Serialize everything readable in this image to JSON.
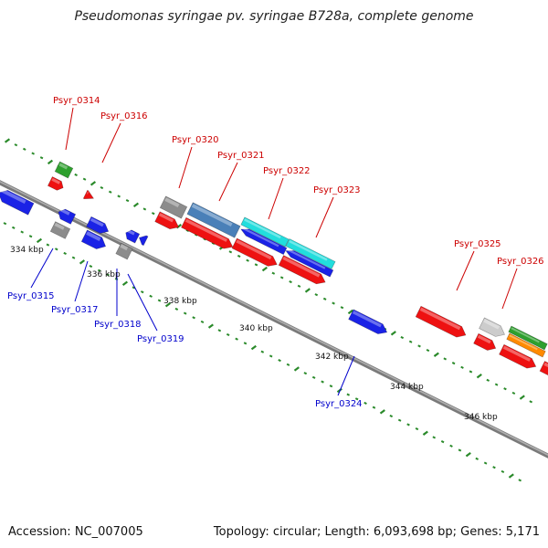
{
  "title": "Pseudomonas syringae pv. syringae B728a, complete genome",
  "footer": {
    "accession": "Accession: NC_007005",
    "topology": "Topology: circular; Length: 6,093,698 bp; Genes: 5,171"
  },
  "colors": {
    "forward_label": "#cc0000",
    "reverse_label": "#0000cc",
    "backbone": "#8a8a8a",
    "tick": "#2a8a2a",
    "red": "#ee1111",
    "blue": "#1a22e6",
    "gray": "#8c8c8c",
    "light_gray": "#cccccc",
    "green": "#2ea02e",
    "steel_blue": "#4a80b8",
    "cyan": "#22dddd",
    "orange": "#ff8a00"
  },
  "scale_labels": [
    "334 kbp",
    "336 kbp",
    "338 kbp",
    "340 kbp",
    "342 kbp",
    "344 kbp",
    "346 kbp"
  ],
  "gene_labels_top": [
    "Psyr_0314",
    "Psyr_0316",
    "Psyr_0320",
    "Psyr_0321",
    "Psyr_0322",
    "Psyr_0323",
    "Psyr_0325",
    "Psyr_0326"
  ],
  "gene_labels_bottom": [
    "Psyr_0315",
    "Psyr_0317",
    "Psyr_0318",
    "Psyr_0319",
    "Psyr_0324"
  ]
}
